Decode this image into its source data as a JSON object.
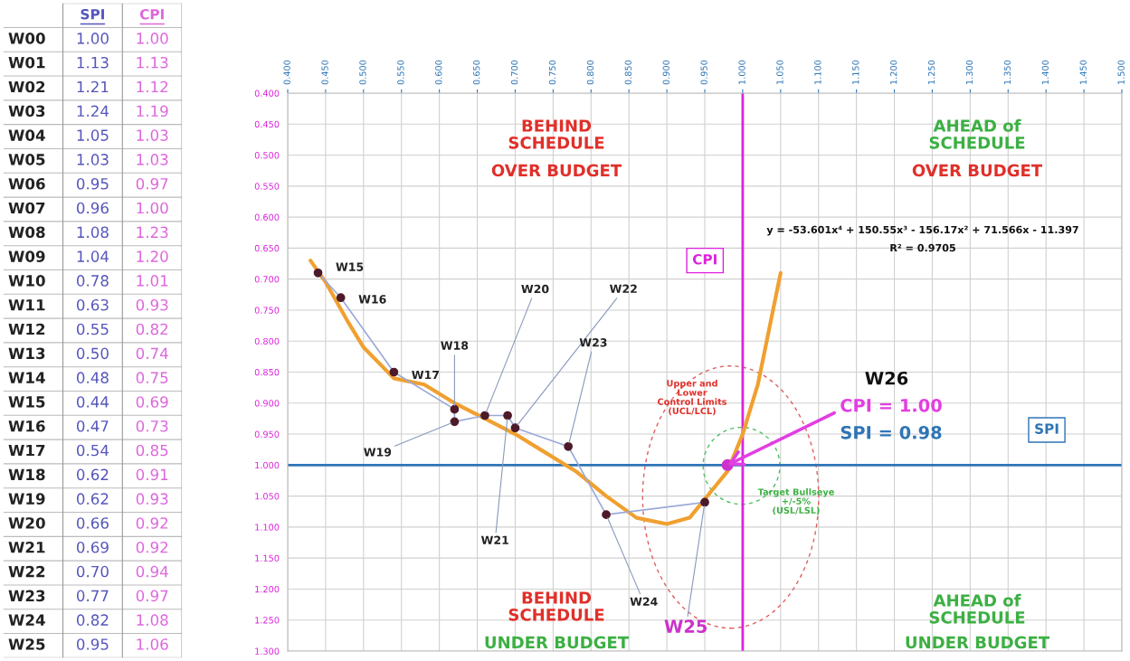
{
  "chart_data": [
    {
      "type": "other",
      "categories": [
        "W00",
        "W01",
        "W02",
        "W03",
        "W04",
        "W05",
        "W06",
        "W07",
        "W08",
        "W09",
        "W10",
        "W11",
        "W12",
        "W13",
        "W14",
        "W15",
        "W16",
        "W17",
        "W18",
        "W19",
        "W20",
        "W21",
        "W22",
        "W23",
        "W24",
        "W25"
      ],
      "series": [
        {
          "name": "SPI",
          "color": "#5555bb",
          "values": [
            1.0,
            1.13,
            1.21,
            1.24,
            1.05,
            1.03,
            0.95,
            0.96,
            1.08,
            1.04,
            0.78,
            0.63,
            0.55,
            0.5,
            0.48,
            0.44,
            0.47,
            0.54,
            0.62,
            0.62,
            0.66,
            0.69,
            0.7,
            0.77,
            0.82,
            0.95
          ],
          "value_labels": [
            "1.00",
            "1.13",
            "1.21",
            "1.24",
            "1.05",
            "1.03",
            "0.95",
            "0.96",
            "1.08",
            "1.04",
            "0.78",
            "0.63",
            "0.55",
            "0.50",
            "0.48",
            "0.44",
            "0.47",
            "0.54",
            "0.62",
            "0.62",
            "0.66",
            "0.69",
            "0.70",
            "0.77",
            "0.82",
            "0.95"
          ]
        },
        {
          "name": "CPI",
          "color": "#dd66dd",
          "values": [
            1.0,
            1.13,
            1.12,
            1.19,
            1.03,
            1.03,
            0.97,
            1.0,
            1.23,
            1.2,
            1.01,
            0.93,
            0.82,
            0.74,
            0.75,
            0.69,
            0.73,
            0.85,
            0.91,
            0.93,
            0.92,
            0.92,
            0.94,
            0.97,
            1.08,
            1.06
          ],
          "value_labels": [
            "1.00",
            "1.13",
            "1.12",
            "1.19",
            "1.03",
            "1.03",
            "0.97",
            "1.00",
            "1.23",
            "1.20",
            "1.01",
            "0.93",
            "0.82",
            "0.74",
            "0.75",
            "0.69",
            "0.73",
            "0.85",
            "0.91",
            "0.93",
            "0.92",
            "0.92",
            "0.94",
            "0.97",
            "1.08",
            "1.06"
          ]
        }
      ]
    },
    {
      "type": "scatter",
      "grid": true,
      "xlim": [
        0.4,
        1.5
      ],
      "xticks": [
        {
          "value": 0.4,
          "label": "0.400"
        },
        {
          "value": 0.45,
          "label": "0.450"
        },
        {
          "value": 0.5,
          "label": "0.500"
        },
        {
          "value": 0.55,
          "label": "0.550"
        },
        {
          "value": 0.6,
          "label": "0.600"
        },
        {
          "value": 0.65,
          "label": "0.650"
        },
        {
          "value": 0.7,
          "label": "0.700"
        },
        {
          "value": 0.75,
          "label": "0.750"
        },
        {
          "value": 0.8,
          "label": "0.800"
        },
        {
          "value": 0.85,
          "label": "0.850"
        },
        {
          "value": 0.9,
          "label": "0.900"
        },
        {
          "value": 0.95,
          "label": "0.950"
        },
        {
          "value": 1.0,
          "label": "1.000"
        },
        {
          "value": 1.05,
          "label": "1.050"
        },
        {
          "value": 1.1,
          "label": "1.100"
        },
        {
          "value": 1.15,
          "label": "1.150"
        },
        {
          "value": 1.2,
          "label": "1.200"
        },
        {
          "value": 1.25,
          "label": "1.250"
        },
        {
          "value": 1.3,
          "label": "1.300"
        },
        {
          "value": 1.35,
          "label": "1.350"
        },
        {
          "value": 1.4,
          "label": "1.400"
        },
        {
          "value": 1.45,
          "label": "1.450"
        },
        {
          "value": 1.5,
          "label": "1.500"
        }
      ],
      "ylim": [
        1.3,
        0.4
      ],
      "yticks": [
        {
          "value": 0.4,
          "label": "0.400"
        },
        {
          "value": 0.45,
          "label": "0.450"
        },
        {
          "value": 0.5,
          "label": "0.500"
        },
        {
          "value": 0.55,
          "label": "0.550"
        },
        {
          "value": 0.6,
          "label": "0.600"
        },
        {
          "value": 0.65,
          "label": "0.650"
        },
        {
          "value": 0.7,
          "label": "0.700"
        },
        {
          "value": 0.75,
          "label": "0.750"
        },
        {
          "value": 0.8,
          "label": "0.800"
        },
        {
          "value": 0.85,
          "label": "0.850"
        },
        {
          "value": 0.9,
          "label": "0.900"
        },
        {
          "value": 0.95,
          "label": "0.950"
        },
        {
          "value": 1.0,
          "label": "1.000"
        },
        {
          "value": 1.05,
          "label": "1.050"
        },
        {
          "value": 1.1,
          "label": "1.100"
        },
        {
          "value": 1.15,
          "label": "1.150"
        },
        {
          "value": 1.2,
          "label": "1.200"
        },
        {
          "value": 1.25,
          "label": "1.250"
        },
        {
          "value": 1.3,
          "label": "1.300"
        }
      ],
      "series": [
        {
          "type": "line",
          "color": "#f0a030",
          "x": [
            0.43,
            0.45,
            0.48,
            0.5,
            0.54,
            0.58,
            0.62,
            0.66,
            0.7,
            0.74,
            0.78,
            0.82,
            0.86,
            0.9,
            0.93,
            0.96,
            0.98,
            1.0,
            1.02,
            1.05
          ],
          "values": [
            0.67,
            0.705,
            0.77,
            0.81,
            0.86,
            0.87,
            0.9,
            0.925,
            0.95,
            0.98,
            1.01,
            1.05,
            1.085,
            1.095,
            1.085,
            1.04,
            1.01,
            0.95,
            0.87,
            0.69
          ]
        },
        {
          "type": "line",
          "color": "#9aaad8",
          "marker": "circle",
          "x": [
            0.44,
            0.47,
            0.54,
            0.62,
            0.62,
            0.66,
            0.69,
            0.7,
            0.77,
            0.82,
            0.95
          ],
          "values": [
            0.69,
            0.73,
            0.85,
            0.91,
            0.93,
            0.92,
            0.92,
            0.94,
            0.97,
            1.08,
            1.06
          ]
        },
        {
          "type": "scatter",
          "color": "#cc33cc",
          "marker": "circle",
          "x": [
            0.98
          ],
          "values": [
            1.0
          ]
        }
      ],
      "ref_lines": [
        {
          "axis": "x",
          "value": 1.0,
          "label": "CPI",
          "color": "#dd22dd"
        },
        {
          "axis": "y",
          "value": 1.0,
          "label": "SPI",
          "color": "#2e75b6"
        }
      ],
      "annotations": [
        "BEHIND\nSCHEDULE",
        "OVER BUDGET",
        "AHEAD of\nSCHEDULE",
        "OVER BUDGET",
        "BEHIND\nSCHEDULE",
        "UNDER BUDGET",
        "AHEAD of\nSCHEDULE",
        "UNDER BUDGET",
        "y = -53.601x⁴ + 150.55x³ - 156.17x² + 71.566x - 11.397",
        "R² = 0.9705",
        "Upper and\nLower\nControl Limits\n(UCL/LCL)",
        "Target Bullseye\n+/-5%\n(USL/LSL)",
        {
          "text": "W15",
          "x": 0.44,
          "y": 0.69
        },
        {
          "text": "W16",
          "x": 0.47,
          "y": 0.73
        },
        {
          "text": "W17",
          "x": 0.54,
          "y": 0.85
        },
        {
          "text": "W18",
          "x": 0.62,
          "y": 0.91
        },
        {
          "text": "W19",
          "x": 0.62,
          "y": 0.93
        },
        {
          "text": "W20",
          "x": 0.66,
          "y": 0.92
        },
        {
          "text": "W21",
          "x": 0.69,
          "y": 0.92
        },
        {
          "text": "W22",
          "x": 0.7,
          "y": 0.94
        },
        {
          "text": "W23",
          "x": 0.77,
          "y": 0.97
        },
        {
          "text": "W24",
          "x": 0.82,
          "y": 1.08
        },
        {
          "text": "W25",
          "x": 0.95,
          "y": 1.06
        },
        "W26",
        {
          "text": "CPI = 1.00",
          "x": 0.98,
          "y": 1.0
        },
        "SPI = 0.98"
      ]
    }
  ]
}
